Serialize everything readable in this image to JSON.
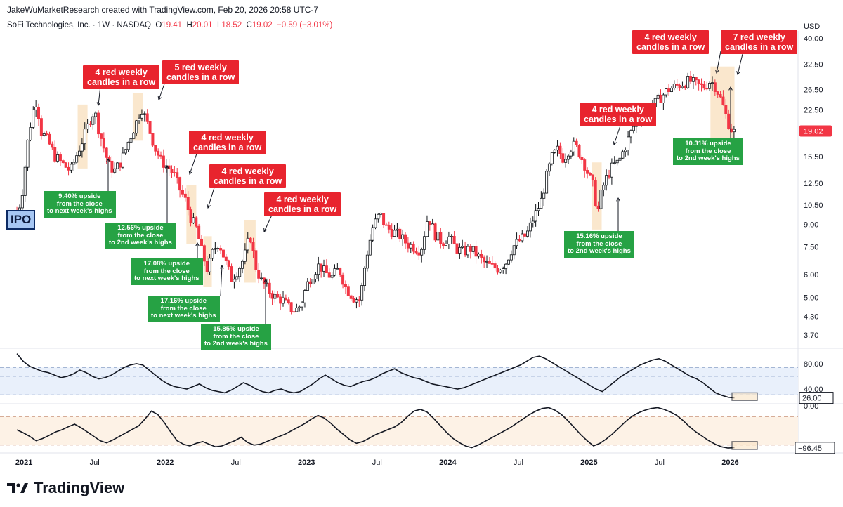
{
  "header": {
    "credit": "JakeWuMarketResearch created with TradingView.com, Feb 20, 2026 20:58 UTC-7",
    "symbol_line": "SoFi Technologies, Inc. · 1W · NASDAQ",
    "o_label": "O",
    "o_value": "19.41",
    "h_label": "H",
    "h_value": "20.01",
    "l_label": "L",
    "l_value": "18.52",
    "c_label": "C",
    "c_value": "19.02",
    "change": "−0.59 (−3.01%)",
    "currency": "USD"
  },
  "footer": {
    "brand": "TradingView"
  },
  "colors": {
    "up": "#101418",
    "down": "#f23645",
    "highlight": "#f9e3c4",
    "green": "#26a244",
    "red": "#e8242e"
  },
  "chart_data": [
    {
      "type": "candlestick",
      "title": "SoFi Technologies, Inc. · 1W · NASDAQ",
      "scale": "log",
      "ylim": [
        3.4,
        42
      ],
      "y_ticks": [
        "40.00",
        "32.50",
        "26.50",
        "22.50",
        "19.02",
        "15.50",
        "12.50",
        "10.50",
        "9.00",
        "7.50",
        "6.00",
        "5.00",
        "4.30",
        "3.70"
      ],
      "last_price": "19.02",
      "x_ticks": [
        {
          "label": "2021",
          "t": 0
        },
        {
          "label": "Jul",
          "t": 0.5
        },
        {
          "label": "2022",
          "t": 1
        },
        {
          "label": "Jul",
          "t": 1.5
        },
        {
          "label": "2023",
          "t": 2
        },
        {
          "label": "Jul",
          "t": 2.5
        },
        {
          "label": "2024",
          "t": 3
        },
        {
          "label": "Jul",
          "t": 3.5
        },
        {
          "label": "2025",
          "t": 4
        },
        {
          "label": "Jul",
          "t": 4.5
        },
        {
          "label": "2026",
          "t": 5
        }
      ],
      "t_range": [
        -0.12,
        5.48
      ],
      "price_path": [
        [
          -0.05,
          10.0
        ],
        [
          -0.02,
          10.8
        ],
        [
          0.03,
          18
        ],
        [
          0.06,
          22
        ],
        [
          0.09,
          24.5
        ],
        [
          0.12,
          19
        ],
        [
          0.17,
          17.5
        ],
        [
          0.22,
          15.5
        ],
        [
          0.28,
          14.5
        ],
        [
          0.33,
          13.8
        ],
        [
          0.38,
          16
        ],
        [
          0.43,
          18.5
        ],
        [
          0.47,
          21
        ],
        [
          0.5,
          22.5
        ],
        [
          0.52,
          20
        ],
        [
          0.56,
          17
        ],
        [
          0.6,
          14.5
        ],
        [
          0.64,
          13.8
        ],
        [
          0.69,
          15
        ],
        [
          0.74,
          17.5
        ],
        [
          0.79,
          20
        ],
        [
          0.83,
          23
        ],
        [
          0.86,
          21
        ],
        [
          0.89,
          19
        ],
        [
          0.93,
          16.5
        ],
        [
          0.97,
          15
        ],
        [
          1.02,
          14.2
        ],
        [
          1.06,
          13.5
        ],
        [
          1.1,
          12
        ],
        [
          1.14,
          11
        ],
        [
          1.18,
          9.5
        ],
        [
          1.22,
          8.7
        ],
        [
          1.26,
          7.2
        ],
        [
          1.3,
          6.2
        ],
        [
          1.34,
          7.3
        ],
        [
          1.38,
          7.8
        ],
        [
          1.43,
          6.6
        ],
        [
          1.47,
          5.8
        ],
        [
          1.52,
          6.3
        ],
        [
          1.56,
          6.9
        ],
        [
          1.6,
          8.3
        ],
        [
          1.64,
          6.4
        ],
        [
          1.68,
          5.7
        ],
        [
          1.73,
          5.3
        ],
        [
          1.78,
          5.0
        ],
        [
          1.83,
          4.9
        ],
        [
          1.88,
          4.6
        ],
        [
          1.92,
          4.5
        ],
        [
          1.96,
          4.7
        ],
        [
          2.0,
          5.5
        ],
        [
          2.04,
          6.0
        ],
        [
          2.09,
          6.5
        ],
        [
          2.13,
          6.1
        ],
        [
          2.18,
          5.9
        ],
        [
          2.23,
          6.3
        ],
        [
          2.28,
          5.4
        ],
        [
          2.33,
          5.0
        ],
        [
          2.38,
          4.9
        ],
        [
          2.42,
          6.8
        ],
        [
          2.47,
          8.8
        ],
        [
          2.52,
          9.8
        ],
        [
          2.56,
          8.8
        ],
        [
          2.61,
          8.5
        ],
        [
          2.66,
          8.2
        ],
        [
          2.71,
          7.7
        ],
        [
          2.76,
          7.5
        ],
        [
          2.81,
          7.3
        ],
        [
          2.86,
          9.6
        ],
        [
          2.91,
          8.3
        ],
        [
          2.96,
          7.8
        ],
        [
          3.01,
          8.1
        ],
        [
          3.06,
          7.4
        ],
        [
          3.11,
          7.2
        ],
        [
          3.16,
          7.4
        ],
        [
          3.21,
          7.0
        ],
        [
          3.26,
          6.6
        ],
        [
          3.31,
          6.4
        ],
        [
          3.36,
          6.3
        ],
        [
          3.41,
          6.6
        ],
        [
          3.46,
          7.5
        ],
        [
          3.51,
          7.9
        ],
        [
          3.56,
          8.3
        ],
        [
          3.61,
          9.5
        ],
        [
          3.66,
          10.8
        ],
        [
          3.7,
          13.2
        ],
        [
          3.74,
          15.5
        ],
        [
          3.78,
          16.4
        ],
        [
          3.82,
          15.2
        ],
        [
          3.86,
          16.5
        ],
        [
          3.9,
          17.0
        ],
        [
          3.93,
          16.0
        ],
        [
          3.97,
          14.5
        ],
        [
          4.0,
          13.2
        ],
        [
          4.03,
          12.2
        ],
        [
          4.06,
          9.8
        ],
        [
          4.09,
          11.8
        ],
        [
          4.13,
          13.3
        ],
        [
          4.17,
          14.4
        ],
        [
          4.21,
          14.8
        ],
        [
          4.26,
          17.0
        ],
        [
          4.31,
          19.5
        ],
        [
          4.36,
          21.5
        ],
        [
          4.41,
          22.0
        ],
        [
          4.46,
          23.5
        ],
        [
          4.51,
          25.0
        ],
        [
          4.56,
          26.5
        ],
        [
          4.61,
          27.2
        ],
        [
          4.66,
          27.8
        ],
        [
          4.71,
          28.5
        ],
        [
          4.76,
          27.6
        ],
        [
          4.81,
          27.0
        ],
        [
          4.86,
          28.5
        ],
        [
          4.9,
          27.0
        ],
        [
          4.94,
          24.0
        ],
        [
          4.97,
          21.5
        ],
        [
          5.0,
          19.5
        ],
        [
          5.03,
          18.8
        ]
      ],
      "highlights": [
        [
          0.38,
          0.45
        ],
        [
          0.77,
          0.84
        ],
        [
          1.15,
          1.22
        ],
        [
          1.27,
          1.33
        ],
        [
          1.56,
          1.64
        ],
        [
          4.02,
          4.09
        ],
        [
          4.86,
          5.03
        ]
      ],
      "annotations_red": [
        {
          "text": "4 red weekly candles in a row",
          "line1": "4 red weekly",
          "line2": "candles in a row"
        },
        {
          "text": "5 red weekly candles in a row",
          "line1": "5 red weekly",
          "line2": "candles in a row"
        },
        {
          "text": "4 red weekly candles in a row",
          "line1": "4 red weekly",
          "line2": "candles in a row"
        },
        {
          "text": "4 red weekly candles in a row",
          "line1": "4 red weekly",
          "line2": "candles in a row"
        },
        {
          "text": "4 red weekly candles in a row",
          "line1": "4 red weekly",
          "line2": "candles in a row"
        },
        {
          "text": "4 red weekly candles in a row",
          "line1": "4 red weekly",
          "line2": "candles in a row"
        },
        {
          "text": "4 red weekly candles in a row",
          "line1": "4 red weekly",
          "line2": "candles in a row"
        },
        {
          "text": "7 red weekly candles in a row",
          "line1": "7 red weekly",
          "line2": "candles in a row"
        }
      ],
      "annotations_green": [
        {
          "line1": "9.40% upside",
          "line2": "from the close",
          "line3": "to next week's highs"
        },
        {
          "line1": "12.56% upside",
          "line2": "from the close",
          "line3": "to 2nd week's highs"
        },
        {
          "line1": "17.08% upside",
          "line2": "from the close",
          "line3": "to next week's highs"
        },
        {
          "line1": "17.16% upside",
          "line2": "from the close",
          "line3": "to next week's highs"
        },
        {
          "line1": "15.85% upside",
          "line2": "from the close",
          "line3": "to 2nd week's highs"
        },
        {
          "line1": "15.16% upside",
          "line2": "from the close",
          "line3": "to 2nd week's highs"
        },
        {
          "line1": "10.31% upside",
          "line2": "from the close",
          "line3": "to 2nd week's highs"
        }
      ],
      "ipo_label": "IPO"
    },
    {
      "type": "line",
      "name": "oscillator-1",
      "ylim": [
        20,
        100
      ],
      "y_ticks": [
        "80.00",
        "40.00"
      ],
      "bands": [
        74,
        60,
        31
      ],
      "last_value": "26.00",
      "values": [
        96,
        84,
        76,
        72,
        68,
        66,
        62,
        58,
        60,
        64,
        70,
        66,
        60,
        56,
        58,
        62,
        68,
        74,
        78,
        80,
        78,
        70,
        62,
        54,
        48,
        44,
        42,
        40,
        44,
        48,
        42,
        38,
        36,
        34,
        38,
        44,
        50,
        46,
        40,
        36,
        34,
        38,
        40,
        36,
        34,
        36,
        42,
        48,
        56,
        62,
        56,
        50,
        46,
        44,
        48,
        52,
        54,
        58,
        64,
        68,
        72,
        66,
        62,
        58,
        56,
        52,
        48,
        46,
        44,
        42,
        40,
        42,
        46,
        50,
        54,
        58,
        62,
        66,
        70,
        74,
        78,
        84,
        90,
        92,
        88,
        82,
        76,
        70,
        64,
        58,
        52,
        46,
        40,
        36,
        44,
        52,
        60,
        66,
        72,
        78,
        82,
        86,
        88,
        84,
        78,
        72,
        66,
        60,
        56,
        50,
        42,
        34,
        30,
        27,
        26
      ]
    },
    {
      "type": "line",
      "name": "oscillator-2",
      "ylim": [
        -100,
        0
      ],
      "y_ticks": [
        "0.00"
      ],
      "bands": [
        -25,
        -90
      ],
      "last_value": "−96.45",
      "values": [
        -55,
        -62,
        -70,
        -80,
        -75,
        -68,
        -60,
        -55,
        -48,
        -42,
        -50,
        -60,
        -70,
        -80,
        -85,
        -78,
        -70,
        -62,
        -54,
        -46,
        -30,
        -12,
        -20,
        -38,
        -60,
        -80,
        -88,
        -92,
        -86,
        -82,
        -88,
        -94,
        -92,
        -86,
        -80,
        -72,
        -84,
        -90,
        -88,
        -82,
        -76,
        -70,
        -64,
        -56,
        -48,
        -40,
        -30,
        -22,
        -28,
        -40,
        -54,
        -66,
        -78,
        -86,
        -82,
        -74,
        -66,
        -60,
        -54,
        -48,
        -38,
        -24,
        -12,
        -8,
        -14,
        -28,
        -44,
        -60,
        -74,
        -84,
        -92,
        -96,
        -90,
        -82,
        -74,
        -66,
        -58,
        -50,
        -40,
        -30,
        -20,
        -12,
        -6,
        -4,
        -10,
        -20,
        -34,
        -50,
        -66,
        -80,
        -92,
        -86,
        -76,
        -64,
        -50,
        -36,
        -24,
        -16,
        -10,
        -6,
        -4,
        -8,
        -14,
        -22,
        -34,
        -48,
        -60,
        -70,
        -80,
        -88,
        -94,
        -97,
        -96
      ]
    }
  ]
}
